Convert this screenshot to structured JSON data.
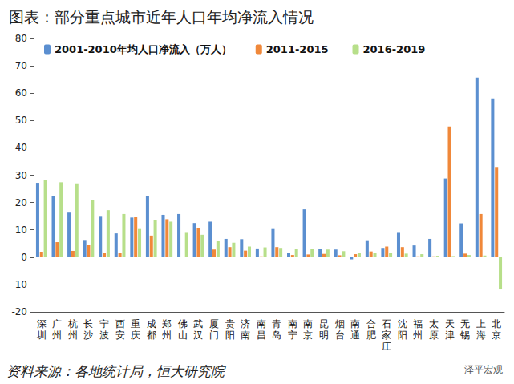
{
  "chart_data": {
    "type": "bar",
    "title": "图表：部分重点城市近年人口年均净流入情况",
    "annotations": [
      "资料来源：各地统计局，恒大研究院",
      "泽平宏观"
    ],
    "categories": [
      "深圳",
      "广州",
      "杭州",
      "长沙",
      "宁波",
      "西安",
      "重庆",
      "成都",
      "郑州",
      "佛山",
      "武汉",
      "厦门",
      "贵阳",
      "济南",
      "南昌",
      "青岛",
      "南宁",
      "南京",
      "昆明",
      "烟台",
      "南通",
      "合肥",
      "石家庄",
      "沈阳",
      "福州",
      "太原",
      "天津",
      "无锡",
      "上海",
      "北京"
    ],
    "series": [
      {
        "name": "2001-2010年均人口净流入（万人）",
        "color": "#5b8fd0",
        "values": [
          27.2,
          22.3,
          16.3,
          6.3,
          14.8,
          8.7,
          14.5,
          22.5,
          15.5,
          15.8,
          12.5,
          13,
          6.7,
          6.6,
          3.2,
          10.3,
          1.5,
          17.5,
          2.9,
          2.8,
          -0.8,
          6.2,
          3.4,
          8.9,
          4.3,
          6.7,
          28.8,
          12.4,
          65.7,
          58.1
        ]
      },
      {
        "name": "2011-2015",
        "color": "#f0883a",
        "values": [
          2,
          5.5,
          2.3,
          4.5,
          1.5,
          1.5,
          14.6,
          7.9,
          13.9,
          0,
          10.8,
          2.8,
          3.7,
          2.4,
          0.3,
          3.7,
          0.8,
          1,
          1.2,
          0.7,
          1.1,
          2.1,
          3.9,
          3.7,
          0.3,
          0.3,
          47.8,
          1.3,
          15.8,
          33
        ]
      },
      {
        "name": "2016-2019",
        "color": "#b7df8a",
        "values": [
          28.3,
          27.4,
          27,
          20.8,
          17.2,
          15.8,
          10.3,
          13.5,
          13,
          8.9,
          8.2,
          5.9,
          5.3,
          3.9,
          3.6,
          3.4,
          3.1,
          3,
          2.8,
          2.2,
          1.6,
          1.5,
          1.5,
          1.3,
          1.1,
          0.5,
          0.4,
          0.8,
          0.6,
          -11.8
        ]
      }
    ],
    "ylim": [
      -20,
      80
    ],
    "yticks": [
      -20,
      -10,
      0,
      10,
      20,
      30,
      40,
      50,
      60,
      70,
      80
    ],
    "grid": false,
    "legend": "top"
  }
}
